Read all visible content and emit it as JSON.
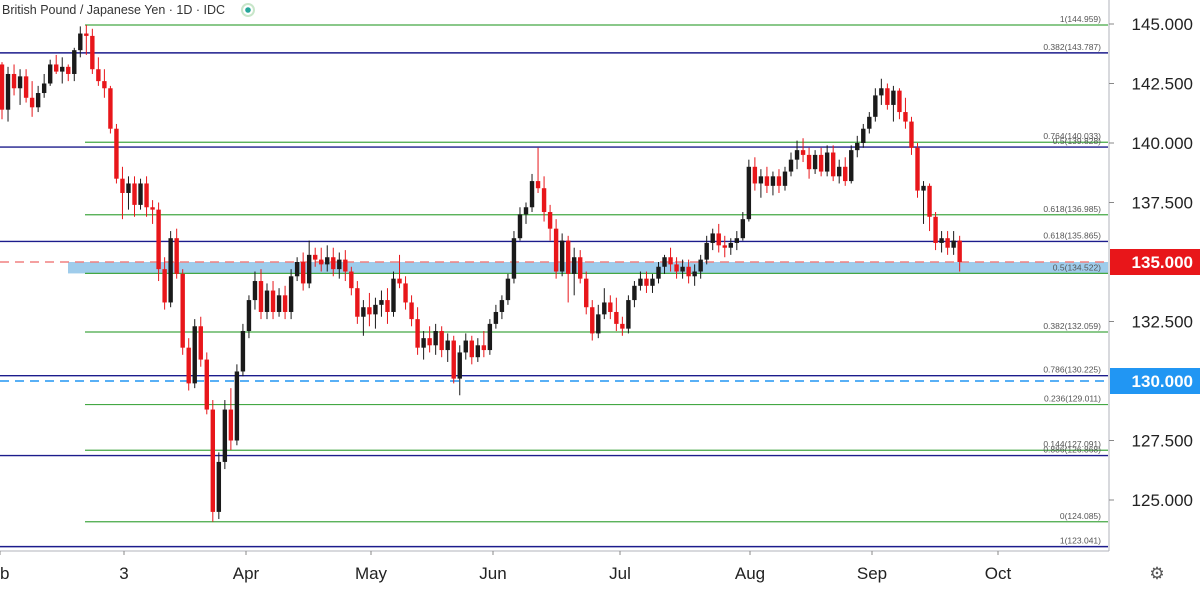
{
  "header": {
    "title": "British Pound / Japanese Yen · 1D · IDC"
  },
  "colors": {
    "up": "#089981",
    "down": "#e8161a",
    "upBody": "#1a1a1a",
    "fibGreen": "#44a844",
    "fibNavy": "#1c1c8c",
    "zone": "#8ec3e8",
    "redBadge": "#e8161a",
    "blueBadge": "#2196f3",
    "redDash": "#f08080",
    "blueDash": "#2196f3",
    "grid": "#e0e3eb",
    "text": "#222222"
  },
  "icons": {
    "status": "status-dot-icon",
    "settings": "gear-icon"
  },
  "chart_data": {
    "type": "candlestick",
    "title": "British Pound / Japanese Yen · 1D · IDC",
    "symbol": "British Pound / Japanese Yen",
    "interval": "1D",
    "source": "IDC",
    "ylim": [
      123.0,
      146.0
    ],
    "y_ticks": [
      "125.000",
      "127.500",
      "132.500",
      "137.500",
      "140.000",
      "142.500",
      "145.000"
    ],
    "x_ticks": [
      "eb",
      "3",
      "Apr",
      "May",
      "Jun",
      "Jul",
      "Aug",
      "Sep",
      "Oct"
    ],
    "badges": [
      {
        "label": "135.000",
        "value": 135.0,
        "color": "#e8161a"
      },
      {
        "label": "130.000",
        "value": 130.0,
        "color": "#2196f3"
      }
    ],
    "dashed_lines": [
      {
        "value": 135.0,
        "color": "#f08080"
      },
      {
        "value": 130.0,
        "color": "#2196f3"
      }
    ],
    "zone": {
      "from": 134.52,
      "to": 135.0
    },
    "fib_green": [
      {
        "label": "1(144.959)",
        "value": 144.959
      },
      {
        "label": "0.764(140.033)",
        "value": 140.033
      },
      {
        "label": "0.618(136.985)",
        "value": 136.985
      },
      {
        "label": "0.5(134.522)",
        "value": 134.522
      },
      {
        "label": "0.382(132.059)",
        "value": 132.059
      },
      {
        "label": "0.236(129.011)",
        "value": 129.011
      },
      {
        "label": "0.144(127.091)",
        "value": 127.091
      },
      {
        "label": "0(124.085)",
        "value": 124.085
      }
    ],
    "fib_navy": [
      {
        "label": "0.382(143.787)",
        "value": 143.787
      },
      {
        "label": "0.5(139.828)",
        "value": 139.828
      },
      {
        "label": "0.618(135.865)",
        "value": 135.865
      },
      {
        "label": "0.786(130.225)",
        "value": 130.225
      },
      {
        "label": "0.886(126.868)",
        "value": 126.868
      },
      {
        "label": "1(123.041)",
        "value": 123.041
      }
    ],
    "candles": [
      [
        143.3,
        143.4,
        141.0,
        141.4
      ],
      [
        141.4,
        143.2,
        140.9,
        142.9
      ],
      [
        142.9,
        143.3,
        142.0,
        142.3
      ],
      [
        142.3,
        143.1,
        141.6,
        142.8
      ],
      [
        142.8,
        143.1,
        141.7,
        141.9
      ],
      [
        141.9,
        142.6,
        141.1,
        141.5
      ],
      [
        141.5,
        142.4,
        141.3,
        142.1
      ],
      [
        142.1,
        142.9,
        141.9,
        142.5
      ],
      [
        142.5,
        143.5,
        142.4,
        143.3
      ],
      [
        143.3,
        143.7,
        142.9,
        143.0
      ],
      [
        143.0,
        143.6,
        142.5,
        143.2
      ],
      [
        143.2,
        143.3,
        142.6,
        142.9
      ],
      [
        142.9,
        144.0,
        142.6,
        143.9
      ],
      [
        143.9,
        144.9,
        143.6,
        144.6
      ],
      [
        144.6,
        144.959,
        143.7,
        144.5
      ],
      [
        144.5,
        144.8,
        142.9,
        143.1
      ],
      [
        143.1,
        143.6,
        142.4,
        142.6
      ],
      [
        142.6,
        143.1,
        141.9,
        142.3
      ],
      [
        142.3,
        142.4,
        140.4,
        140.6
      ],
      [
        140.6,
        140.8,
        138.3,
        138.5
      ],
      [
        138.5,
        139.0,
        136.8,
        137.9
      ],
      [
        137.9,
        138.6,
        137.2,
        138.3
      ],
      [
        138.3,
        138.6,
        136.9,
        137.4
      ],
      [
        137.4,
        138.5,
        137.2,
        138.3
      ],
      [
        138.3,
        138.6,
        136.9,
        137.3
      ],
      [
        137.3,
        137.6,
        136.6,
        137.2
      ],
      [
        137.2,
        137.5,
        134.2,
        134.7
      ],
      [
        134.7,
        135.2,
        133.0,
        133.3
      ],
      [
        133.3,
        136.3,
        133.1,
        136.0
      ],
      [
        136.0,
        136.4,
        134.3,
        134.5
      ],
      [
        134.5,
        134.7,
        131.1,
        131.4
      ],
      [
        131.4,
        131.8,
        129.6,
        129.9
      ],
      [
        129.9,
        132.6,
        129.7,
        132.3
      ],
      [
        132.3,
        132.7,
        130.6,
        130.9
      ],
      [
        130.9,
        131.2,
        128.6,
        128.8
      ],
      [
        128.8,
        129.2,
        124.085,
        124.5
      ],
      [
        124.5,
        127.0,
        124.2,
        126.6
      ],
      [
        126.6,
        129.2,
        126.3,
        128.8
      ],
      [
        128.8,
        129.7,
        127.1,
        127.5
      ],
      [
        127.5,
        130.7,
        127.3,
        130.4
      ],
      [
        130.4,
        132.4,
        130.2,
        132.1
      ],
      [
        132.1,
        133.6,
        131.8,
        133.4
      ],
      [
        133.4,
        134.6,
        133.0,
        134.2
      ],
      [
        134.2,
        134.7,
        132.6,
        132.9
      ],
      [
        132.9,
        134.1,
        132.6,
        133.8
      ],
      [
        133.8,
        134.2,
        132.6,
        132.9
      ],
      [
        132.9,
        133.9,
        132.7,
        133.6
      ],
      [
        133.6,
        134.0,
        132.6,
        132.9
      ],
      [
        132.9,
        134.7,
        132.6,
        134.4
      ],
      [
        134.4,
        135.2,
        134.2,
        135.0
      ],
      [
        135.0,
        135.4,
        133.8,
        134.1
      ],
      [
        134.1,
        135.9,
        133.9,
        135.3
      ],
      [
        135.3,
        135.6,
        134.8,
        135.1
      ],
      [
        135.1,
        135.6,
        134.6,
        134.9
      ],
      [
        134.9,
        135.7,
        134.6,
        135.2
      ],
      [
        135.2,
        135.6,
        134.4,
        134.7
      ],
      [
        134.7,
        135.4,
        134.3,
        135.1
      ],
      [
        135.1,
        135.5,
        134.2,
        134.6
      ],
      [
        134.6,
        134.8,
        133.6,
        133.9
      ],
      [
        133.9,
        134.2,
        132.4,
        132.7
      ],
      [
        132.7,
        133.4,
        131.9,
        133.1
      ],
      [
        133.1,
        133.7,
        132.3,
        132.8
      ],
      [
        132.8,
        133.5,
        132.2,
        133.2
      ],
      [
        133.2,
        133.8,
        132.7,
        133.4
      ],
      [
        133.4,
        133.9,
        132.4,
        132.9
      ],
      [
        132.9,
        134.6,
        132.7,
        134.3
      ],
      [
        134.3,
        135.3,
        133.9,
        134.1
      ],
      [
        134.1,
        134.4,
        133.0,
        133.3
      ],
      [
        133.3,
        133.6,
        132.3,
        132.6
      ],
      [
        132.6,
        133.1,
        131.1,
        131.4
      ],
      [
        131.4,
        132.1,
        130.9,
        131.8
      ],
      [
        131.8,
        132.3,
        131.2,
        131.5
      ],
      [
        131.5,
        132.4,
        131.1,
        132.1
      ],
      [
        132.1,
        132.3,
        131.0,
        131.3
      ],
      [
        131.3,
        132.0,
        130.8,
        131.7
      ],
      [
        131.7,
        131.9,
        129.9,
        130.1
      ],
      [
        130.1,
        131.5,
        129.4,
        131.2
      ],
      [
        131.2,
        132.0,
        130.9,
        131.7
      ],
      [
        131.7,
        131.9,
        130.7,
        131.0
      ],
      [
        131.0,
        131.8,
        130.8,
        131.5
      ],
      [
        131.5,
        132.1,
        131.0,
        131.3
      ],
      [
        131.3,
        132.6,
        131.1,
        132.4
      ],
      [
        132.4,
        133.2,
        132.2,
        132.9
      ],
      [
        132.9,
        133.6,
        132.6,
        133.4
      ],
      [
        133.4,
        134.5,
        133.2,
        134.3
      ],
      [
        134.3,
        136.3,
        134.1,
        136.0
      ],
      [
        136.0,
        137.3,
        135.9,
        137.0
      ],
      [
        137.0,
        137.5,
        136.6,
        137.3
      ],
      [
        137.3,
        138.7,
        137.1,
        138.4
      ],
      [
        138.4,
        139.8,
        137.9,
        138.1
      ],
      [
        138.1,
        138.6,
        136.7,
        137.1
      ],
      [
        137.1,
        137.4,
        135.9,
        136.4
      ],
      [
        136.4,
        136.8,
        134.3,
        134.6
      ],
      [
        134.6,
        136.2,
        134.4,
        135.9
      ],
      [
        135.9,
        136.1,
        133.3,
        134.5
      ],
      [
        134.5,
        135.6,
        133.6,
        135.2
      ],
      [
        135.2,
        135.5,
        134.1,
        134.3
      ],
      [
        134.3,
        134.6,
        132.8,
        133.1
      ],
      [
        133.1,
        133.4,
        131.7,
        132.0
      ],
      [
        132.0,
        133.2,
        131.8,
        132.8
      ],
      [
        132.8,
        133.9,
        132.6,
        133.3
      ],
      [
        133.3,
        133.6,
        132.6,
        132.9
      ],
      [
        132.9,
        133.5,
        132.1,
        132.4
      ],
      [
        132.4,
        132.7,
        131.9,
        132.2
      ],
      [
        132.2,
        133.6,
        132.0,
        133.4
      ],
      [
        133.4,
        134.2,
        133.1,
        134.0
      ],
      [
        134.0,
        134.6,
        133.8,
        134.3
      ],
      [
        134.3,
        134.6,
        133.7,
        134.0
      ],
      [
        134.0,
        134.5,
        133.7,
        134.3
      ],
      [
        134.3,
        135.0,
        134.1,
        134.8
      ],
      [
        134.8,
        135.3,
        134.5,
        135.2
      ],
      [
        135.2,
        135.6,
        134.6,
        134.9
      ],
      [
        134.9,
        135.2,
        134.3,
        134.6
      ],
      [
        134.6,
        135.1,
        134.3,
        134.8
      ],
      [
        134.8,
        135.1,
        134.1,
        134.4
      ],
      [
        134.4,
        134.9,
        134.0,
        134.6
      ],
      [
        134.6,
        135.3,
        134.3,
        135.1
      ],
      [
        135.1,
        136.1,
        134.9,
        135.8
      ],
      [
        135.8,
        136.4,
        135.5,
        136.2
      ],
      [
        136.2,
        136.6,
        135.4,
        135.7
      ],
      [
        135.7,
        136.1,
        135.2,
        135.6
      ],
      [
        135.6,
        136.0,
        135.3,
        135.8
      ],
      [
        135.8,
        136.3,
        135.5,
        136.0
      ],
      [
        136.0,
        137.1,
        135.9,
        136.8
      ],
      [
        136.8,
        139.3,
        136.7,
        139.0
      ],
      [
        139.0,
        139.4,
        138.0,
        138.3
      ],
      [
        138.3,
        138.9,
        137.7,
        138.6
      ],
      [
        138.6,
        139.0,
        137.9,
        138.2
      ],
      [
        138.2,
        138.8,
        137.8,
        138.6
      ],
      [
        138.6,
        138.9,
        137.9,
        138.2
      ],
      [
        138.2,
        139.0,
        138.0,
        138.8
      ],
      [
        138.8,
        139.6,
        138.6,
        139.3
      ],
      [
        139.3,
        140.1,
        138.9,
        139.7
      ],
      [
        139.7,
        140.2,
        139.2,
        139.5
      ],
      [
        139.5,
        139.8,
        138.5,
        138.9
      ],
      [
        138.9,
        139.7,
        138.7,
        139.5
      ],
      [
        139.5,
        139.8,
        138.6,
        138.8
      ],
      [
        138.8,
        139.9,
        138.6,
        139.6
      ],
      [
        139.6,
        139.9,
        138.4,
        138.6
      ],
      [
        138.6,
        139.3,
        138.3,
        139.0
      ],
      [
        139.0,
        139.4,
        138.2,
        138.4
      ],
      [
        138.4,
        139.9,
        138.3,
        139.7
      ],
      [
        139.7,
        140.3,
        139.4,
        140.0
      ],
      [
        140.0,
        140.8,
        139.8,
        140.6
      ],
      [
        140.6,
        141.3,
        140.4,
        141.1
      ],
      [
        141.1,
        142.3,
        140.9,
        142.0
      ],
      [
        142.0,
        142.7,
        141.6,
        142.3
      ],
      [
        142.3,
        142.5,
        141.4,
        141.6
      ],
      [
        141.6,
        142.4,
        140.9,
        142.2
      ],
      [
        142.2,
        142.3,
        141.0,
        141.3
      ],
      [
        141.3,
        141.9,
        140.6,
        140.9
      ],
      [
        140.9,
        141.1,
        139.5,
        139.8
      ],
      [
        139.8,
        140.0,
        137.7,
        138.0
      ],
      [
        138.0,
        138.4,
        136.6,
        138.2
      ],
      [
        138.2,
        138.3,
        136.3,
        136.9
      ],
      [
        136.9,
        137.1,
        135.5,
        135.8
      ],
      [
        135.8,
        136.3,
        135.4,
        136.0
      ],
      [
        136.0,
        136.3,
        135.3,
        135.6
      ],
      [
        135.6,
        136.3,
        135.3,
        135.9
      ],
      [
        135.9,
        136.1,
        134.6,
        135.0
      ]
    ]
  },
  "footer": {
    "settings_label": "⚙"
  }
}
